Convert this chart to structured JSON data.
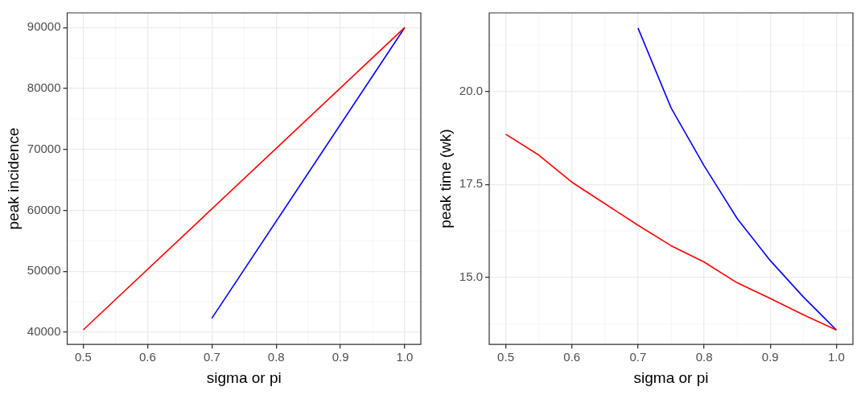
{
  "chart_data": [
    {
      "type": "line",
      "xlabel": "sigma or pi",
      "ylabel": "peak incidence",
      "xlim": [
        0.475,
        1.025
      ],
      "ylim": [
        38000,
        92400
      ],
      "xticks": [
        0.5,
        0.6,
        0.7,
        0.8,
        0.9,
        {
          "value": 1.0,
          "label": "1.0"
        }
      ],
      "yticks": [
        40000,
        50000,
        60000,
        70000,
        80000,
        90000
      ],
      "grid": true,
      "legend": false,
      "marker": "none",
      "line_style": "solid",
      "series": [
        {
          "color": "#ff0000",
          "x": [
            0.5,
            1.0
          ],
          "values": [
            40400,
            90000
          ]
        },
        {
          "color": "#0000ff",
          "x": [
            0.7,
            1.0
          ],
          "values": [
            42300,
            90000
          ]
        }
      ]
    },
    {
      "type": "line",
      "xlabel": "sigma or pi",
      "ylabel": "peak time (wk)",
      "xlim": [
        0.475,
        1.025
      ],
      "ylim": [
        13.19,
        22.12
      ],
      "xticks": [
        0.5,
        0.6,
        0.7,
        0.8,
        0.9,
        {
          "value": 1.0,
          "label": "1.0"
        }
      ],
      "yticks": [
        {
          "value": 15,
          "label": "15.0"
        },
        17.5,
        {
          "value": 20,
          "label": "20.0"
        }
      ],
      "grid": true,
      "legend": false,
      "marker": "none",
      "line_style": "solid",
      "series": [
        {
          "color": "#ff0000",
          "x": [
            0.5,
            0.55,
            0.6,
            0.65,
            0.7,
            0.75,
            0.8,
            0.85,
            0.9,
            0.95,
            1.0
          ],
          "values": [
            18.85,
            18.29,
            17.56,
            16.98,
            16.4,
            15.85,
            15.41,
            14.85,
            14.43,
            13.99,
            13.58
          ]
        },
        {
          "color": "#0000ff",
          "x": [
            0.7,
            0.75,
            0.8,
            0.85,
            0.9,
            0.95,
            1.0
          ],
          "values": [
            21.71,
            19.56,
            18.0,
            16.58,
            15.45,
            14.47,
            13.58
          ]
        }
      ]
    }
  ]
}
